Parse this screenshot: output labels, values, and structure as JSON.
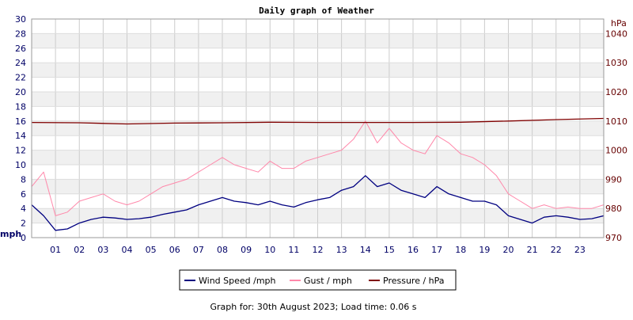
{
  "chart_data": {
    "type": "line",
    "title": "Daily graph of Weather",
    "footer": "Graph for: 30th August 2023; Load time: 0.06 s",
    "y_left": {
      "unit": "mph",
      "range": [
        0,
        30
      ],
      "ticks": [
        0,
        2,
        4,
        6,
        8,
        10,
        12,
        14,
        16,
        18,
        20,
        22,
        24,
        26,
        28,
        30
      ]
    },
    "y_right": {
      "unit": "hPa",
      "range": [
        970,
        1045
      ],
      "ticks": [
        970,
        980,
        990,
        1000,
        1010,
        1020,
        1030,
        1040
      ]
    },
    "x": {
      "range": [
        0,
        24
      ],
      "tick_labels": [
        "01",
        "02",
        "03",
        "04",
        "05",
        "06",
        "07",
        "08",
        "09",
        "10",
        "11",
        "12",
        "13",
        "14",
        "15",
        "16",
        "17",
        "18",
        "19",
        "20",
        "21",
        "22",
        "23"
      ]
    },
    "grid": true,
    "legend_position": "bottom-center",
    "series": [
      {
        "name": "Wind Speed /mph",
        "color": "#000080",
        "axis": "left",
        "hours": [
          0,
          0.5,
          1,
          1.5,
          2,
          2.5,
          3,
          3.5,
          4,
          4.5,
          5,
          5.5,
          6,
          6.5,
          7,
          7.5,
          8,
          8.5,
          9,
          9.5,
          10,
          10.5,
          11,
          11.5,
          12,
          12.5,
          13,
          13.5,
          14,
          14.5,
          15,
          15.5,
          16,
          16.5,
          17,
          17.5,
          18,
          18.5,
          19,
          19.5,
          20,
          20.5,
          21,
          21.5,
          22,
          22.5,
          23,
          23.5,
          24
        ],
        "values": [
          4.5,
          3.0,
          1.0,
          1.2,
          2.0,
          2.5,
          2.8,
          2.7,
          2.5,
          2.6,
          2.8,
          3.2,
          3.5,
          3.8,
          4.5,
          5.0,
          5.5,
          5.0,
          4.8,
          4.5,
          5.0,
          4.5,
          4.2,
          4.8,
          5.2,
          5.5,
          6.5,
          7.0,
          8.5,
          7.0,
          7.5,
          6.5,
          6.0,
          5.5,
          7.0,
          6.0,
          5.5,
          5.0,
          5.0,
          4.5,
          3.0,
          2.5,
          2.0,
          2.8,
          3.0,
          2.8,
          2.5,
          2.6,
          3.0
        ]
      },
      {
        "name": "Gust / mph",
        "color": "#ff88aa",
        "axis": "left",
        "hours": [
          0,
          0.5,
          1,
          1.5,
          2,
          2.5,
          3,
          3.5,
          4,
          4.5,
          5,
          5.5,
          6,
          6.5,
          7,
          7.5,
          8,
          8.5,
          9,
          9.5,
          10,
          10.5,
          11,
          11.5,
          12,
          12.5,
          13,
          13.5,
          14,
          14.5,
          15,
          15.5,
          16,
          16.5,
          17,
          17.5,
          18,
          18.5,
          19,
          19.5,
          20,
          20.5,
          21,
          21.5,
          22,
          22.5,
          23,
          23.5,
          24
        ],
        "values": [
          7.0,
          9.0,
          3.0,
          3.5,
          5.0,
          5.5,
          6.0,
          5.0,
          4.5,
          5.0,
          6.0,
          7.0,
          7.5,
          8.0,
          9.0,
          10.0,
          11.0,
          10.0,
          9.5,
          9.0,
          10.5,
          9.5,
          9.5,
          10.5,
          11.0,
          11.5,
          12.0,
          13.5,
          16.0,
          13.0,
          15.0,
          13.0,
          12.0,
          11.5,
          14.0,
          13.0,
          11.5,
          11.0,
          10.0,
          8.5,
          6.0,
          5.0,
          4.0,
          4.5,
          4.0,
          4.2,
          4.0,
          4.0,
          4.5
        ]
      },
      {
        "name": "Pressure / hPa",
        "color": "#800000",
        "axis": "right",
        "hours": [
          0,
          2,
          4,
          6,
          8,
          10,
          12,
          14,
          16,
          18,
          20,
          22,
          24
        ],
        "values": [
          1009.5,
          1009.4,
          1009.0,
          1009.3,
          1009.4,
          1009.6,
          1009.5,
          1009.5,
          1009.5,
          1009.6,
          1010.0,
          1010.5,
          1010.9
        ]
      }
    ]
  }
}
